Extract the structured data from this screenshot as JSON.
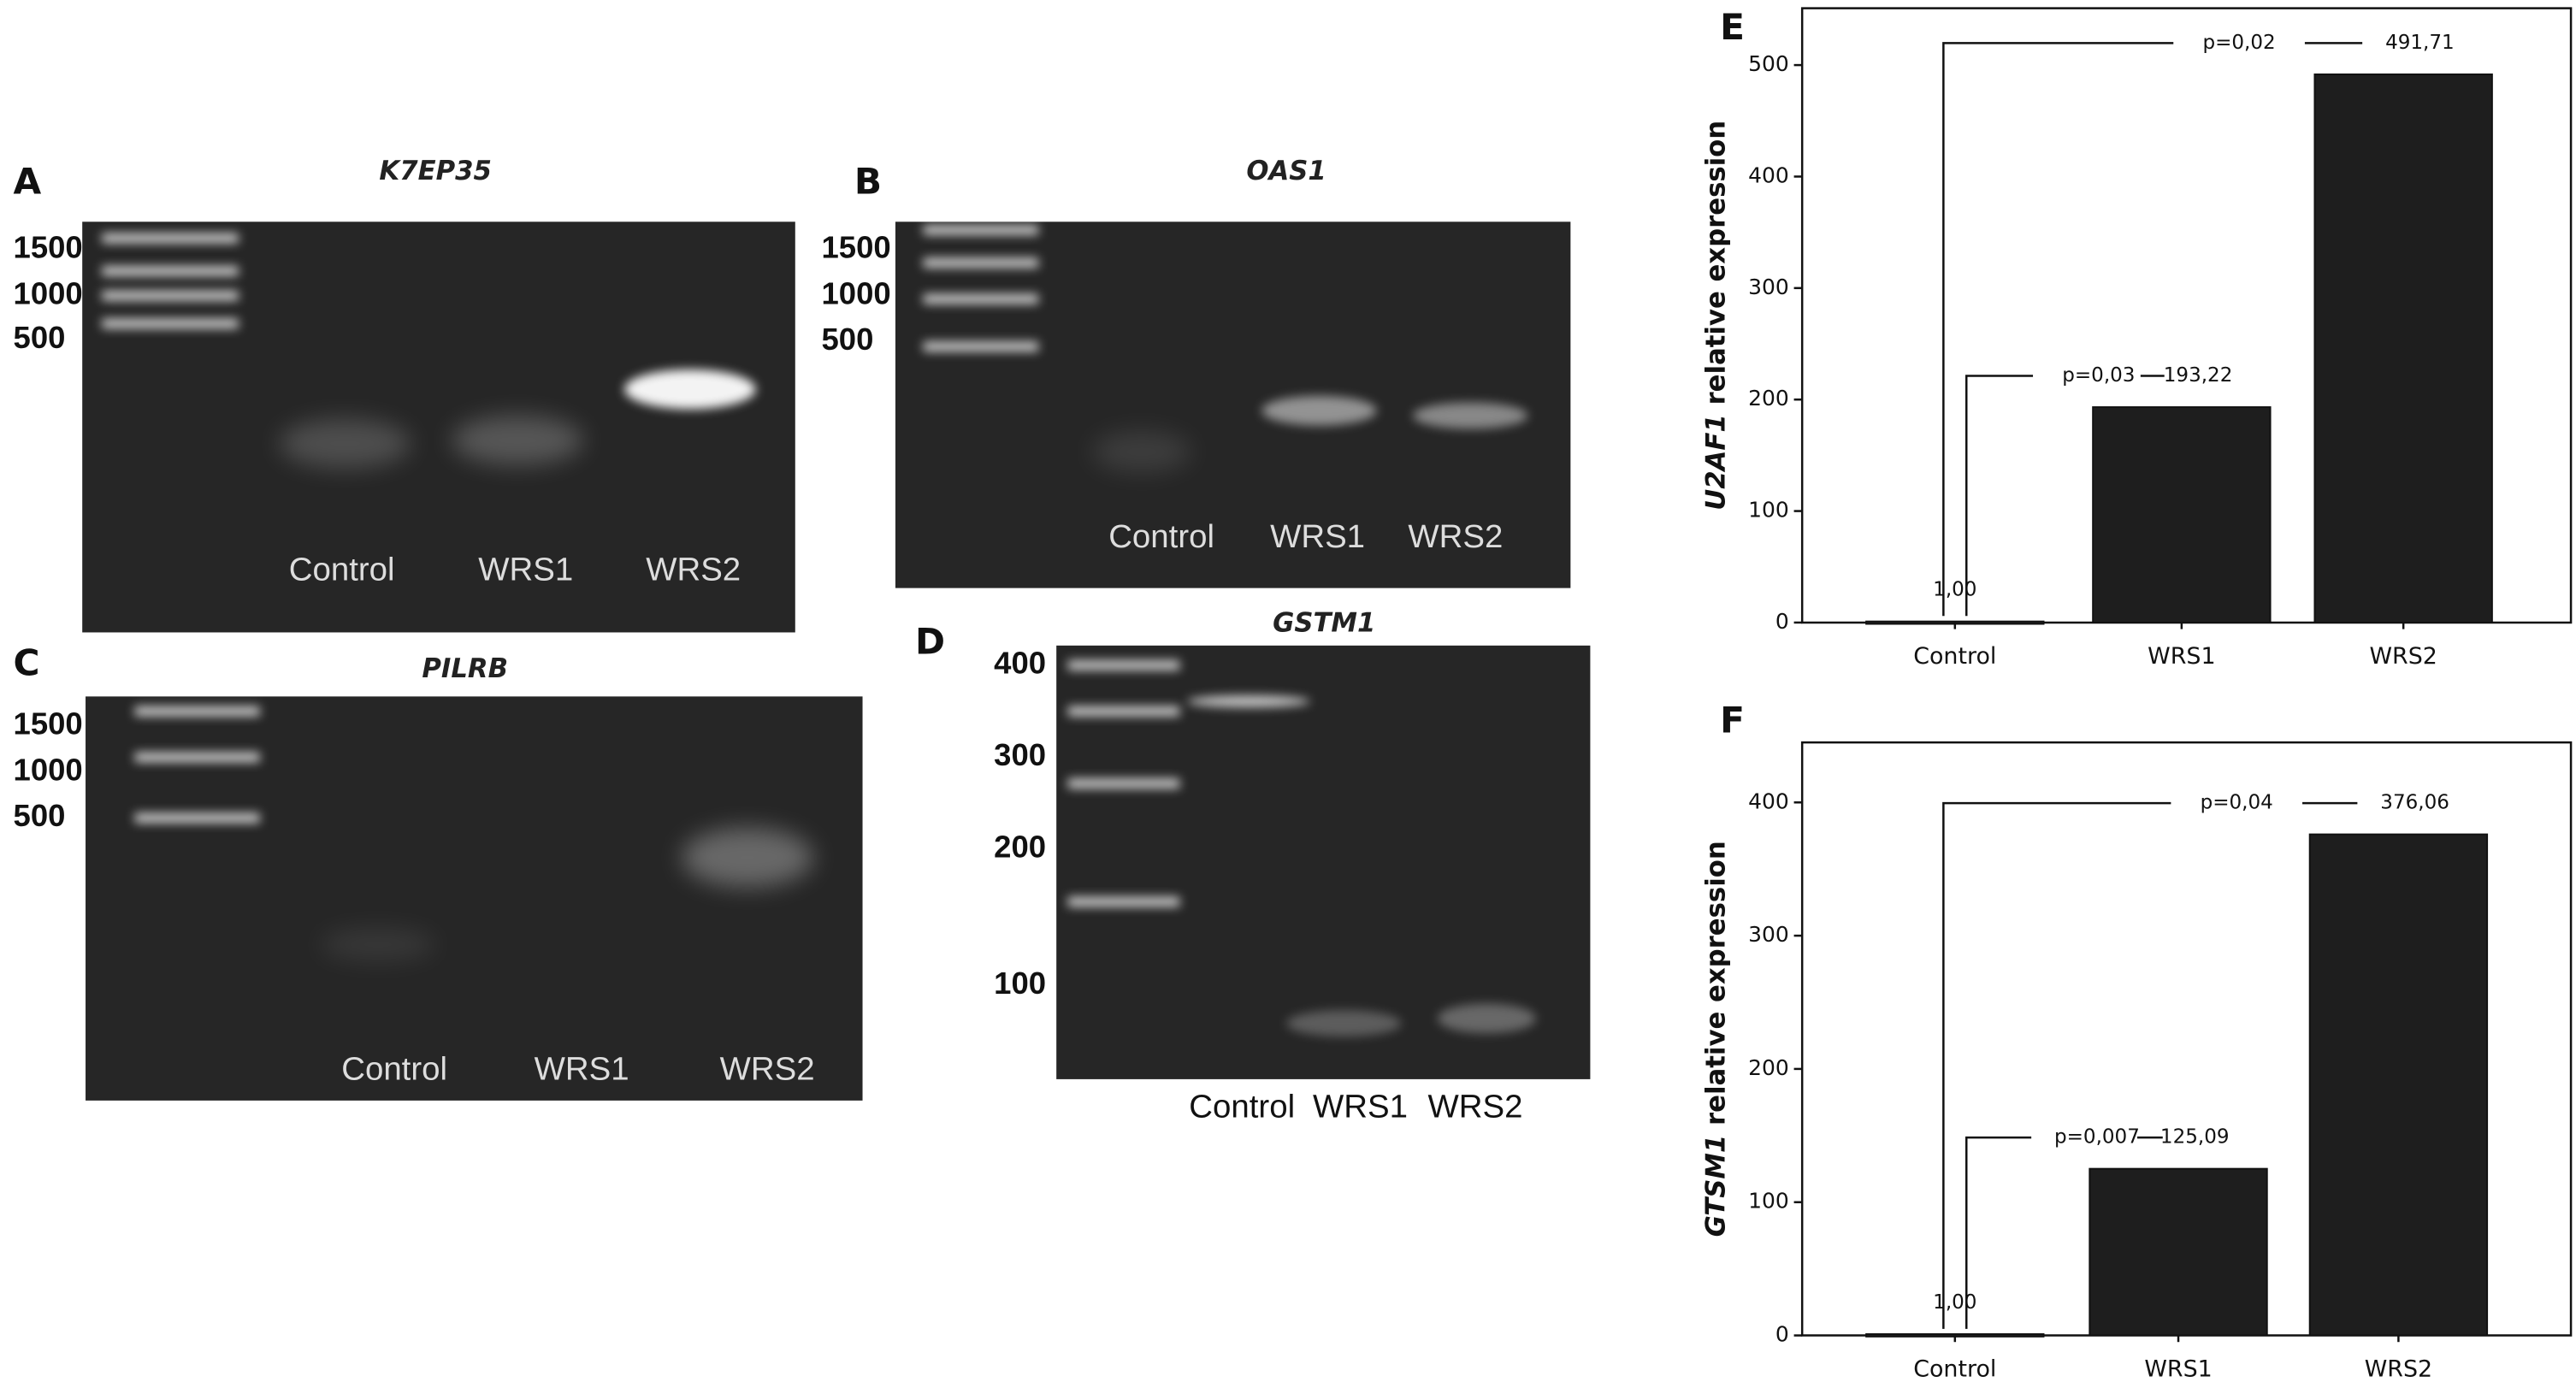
{
  "panels": [
    {
      "letter": "A",
      "title": "K7EP35",
      "ladder": [
        "1500",
        "1000",
        "500"
      ],
      "lanes": [
        "Control",
        "WRS1",
        "WRS2"
      ]
    },
    {
      "letter": "B",
      "title": "OAS1",
      "ladder": [
        "1500",
        "1000",
        "500"
      ],
      "lanes": [
        "Control",
        "WRS1",
        "WRS2"
      ]
    },
    {
      "letter": "C",
      "title": "PILRB",
      "ladder": [
        "1500",
        "1000",
        "500"
      ],
      "lanes": [
        "Control",
        "WRS1",
        "WRS2"
      ]
    },
    {
      "letter": "D",
      "title": "GSTM1",
      "ladder": [
        "400",
        "300",
        "200",
        "100"
      ],
      "lanes": [
        "Control",
        "WRS1",
        "WRS2"
      ]
    }
  ],
  "chart_data": [
    {
      "type": "bar",
      "panel_label": "E",
      "ylabel_gene": "U2AF1",
      "ylabel": "relative expression",
      "categories": [
        "Control",
        "WRS1",
        "WRS2"
      ],
      "values": [
        1.0,
        193.22,
        491.71
      ],
      "value_labels": [
        "1,00",
        "193,22",
        "491,71"
      ],
      "color": "#1e1e1e",
      "ylim": [
        0,
        551
      ],
      "yticks": [
        0,
        100,
        200,
        300,
        400,
        500
      ],
      "annotations": [
        "p=0,03",
        "p=0,02"
      ]
    },
    {
      "type": "bar",
      "panel_label": "F",
      "ylabel_gene": "GTSM1",
      "ylabel": "relative expression",
      "categories": [
        "Control",
        "WRS1",
        "WRS2"
      ],
      "values": [
        1.0,
        125.09,
        376.06
      ],
      "value_labels": [
        "1,00",
        "125,09",
        "376,06"
      ],
      "color": "#1e1e1e",
      "ylim": [
        0,
        445
      ],
      "yticks": [
        0,
        100,
        200,
        300,
        400
      ],
      "annotations": [
        "p=0,007",
        "p=0,04"
      ]
    }
  ]
}
